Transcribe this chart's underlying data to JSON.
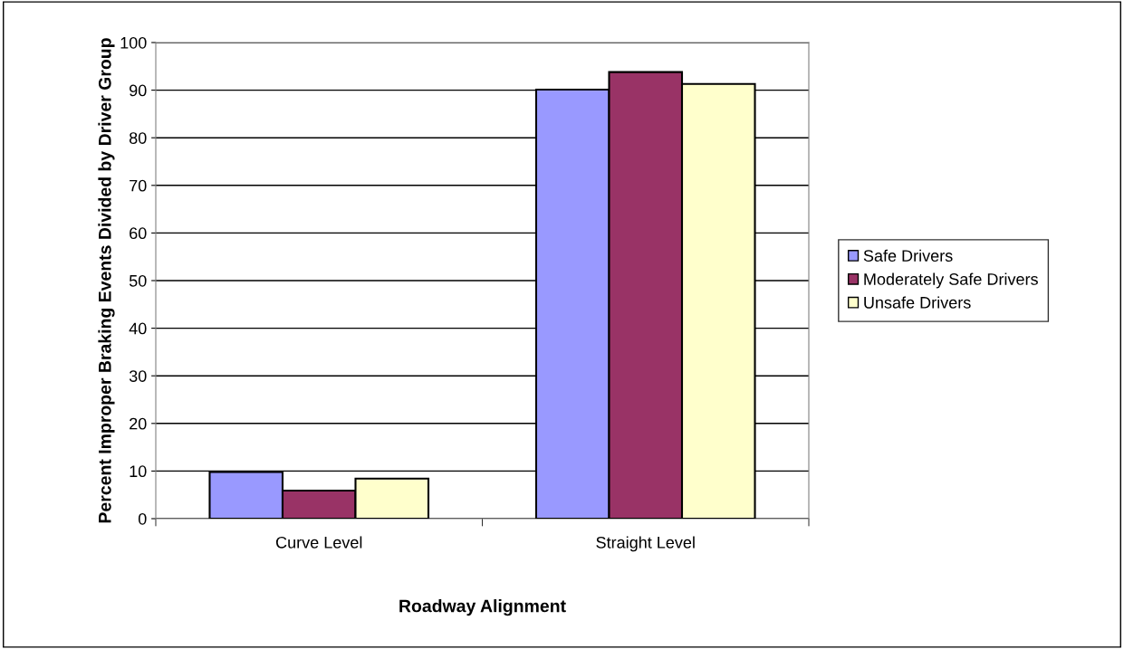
{
  "chart_data": {
    "type": "bar",
    "xlabel": "Roadway Alignment",
    "ylabel": "Percent Improper Braking Events Divided by Driver Group",
    "categories": [
      "Curve Level",
      "Straight Level"
    ],
    "series": [
      {
        "name": "Safe Drivers",
        "color": "#9999ff",
        "values": [
          9.8,
          90.1
        ]
      },
      {
        "name": "Moderately Safe Drivers",
        "color": "#993366",
        "values": [
          5.9,
          93.8
        ]
      },
      {
        "name": "Unsafe Drivers",
        "color": "#ffffcc",
        "values": [
          8.4,
          91.3
        ]
      }
    ],
    "ylim": [
      0,
      100
    ],
    "yticks": [
      0,
      10,
      20,
      30,
      40,
      50,
      60,
      70,
      80,
      90,
      100
    ],
    "grid": "y",
    "legend": "right"
  }
}
